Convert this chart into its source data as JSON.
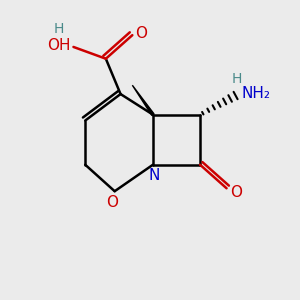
{
  "bg_color": "#ebebeb",
  "atom_colors": {
    "C": "#000000",
    "N": "#0000cc",
    "O": "#cc0000",
    "H": "#4a8a8a"
  },
  "bond_color": "#000000"
}
